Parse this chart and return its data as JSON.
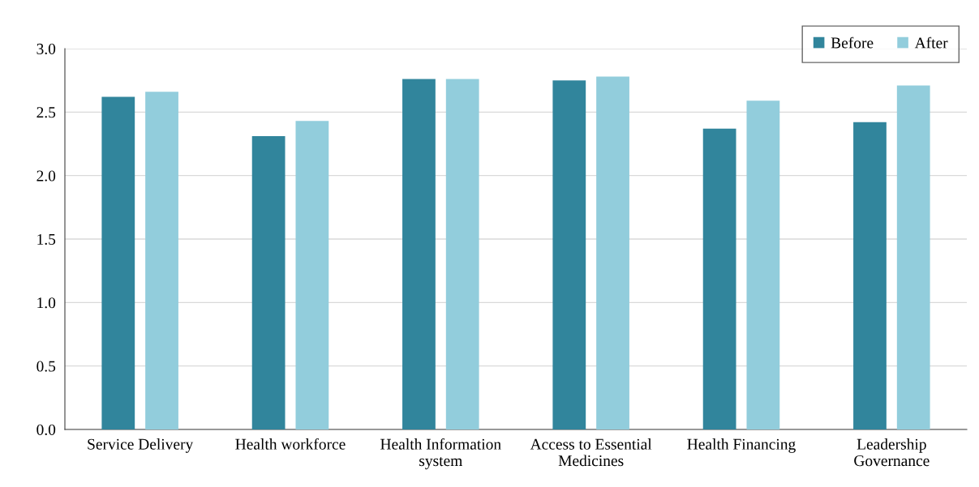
{
  "chart_data": {
    "type": "bar",
    "categories": [
      "Service Delivery",
      "Health workforce",
      "Health Information\nsystem",
      "Access to Essential\nMedicines",
      "Health Financing",
      "Leadership\nGovernance"
    ],
    "series": [
      {
        "name": "Before",
        "color": "#31859c",
        "values": [
          2.62,
          2.31,
          2.76,
          2.75,
          2.37,
          2.42
        ]
      },
      {
        "name": "After",
        "color": "#92cddc",
        "values": [
          2.66,
          2.43,
          2.76,
          2.78,
          2.59,
          2.71
        ]
      }
    ],
    "ylim": [
      0,
      3.0
    ],
    "yticks": [
      {
        "value": 0,
        "label": "0.0"
      },
      {
        "value": 0.5,
        "label": "0.5"
      },
      {
        "value": 1.0,
        "label": "1.0"
      },
      {
        "value": 1.5,
        "label": "1.5"
      },
      {
        "value": 2.0,
        "label": "2.0"
      },
      {
        "value": 2.5,
        "label": "2.5"
      },
      {
        "value": 3.0,
        "label": "3.0"
      }
    ],
    "grid": "y",
    "legend": "top right"
  }
}
